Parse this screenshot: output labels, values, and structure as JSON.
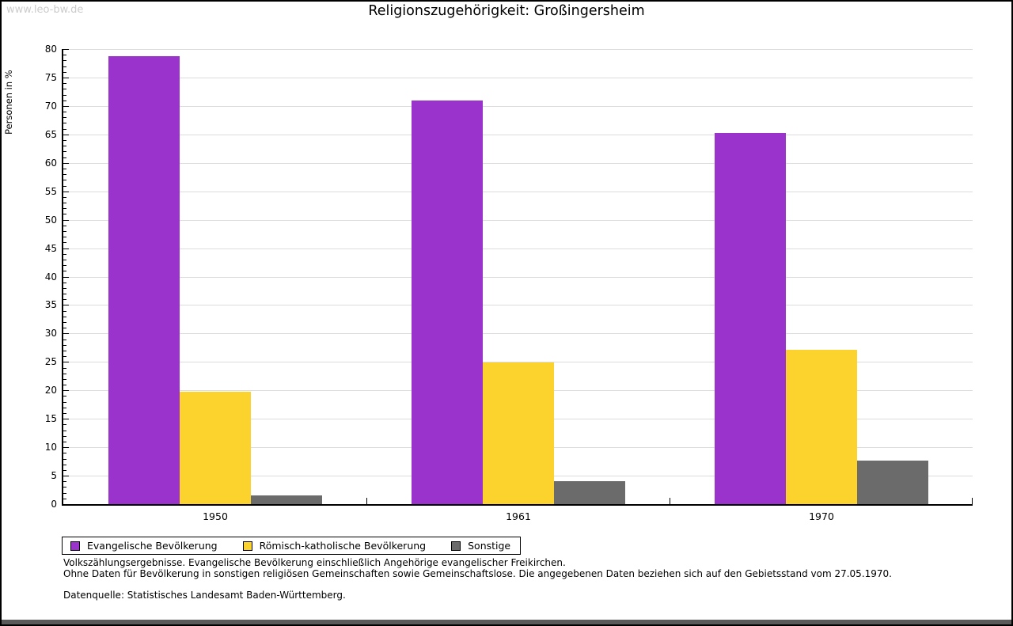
{
  "page": {
    "watermark": "www.leo-bw.de",
    "title": "Religionszugehörigkeit: Großingersheim"
  },
  "chart_data": {
    "type": "bar",
    "title": "Religionszugehörigkeit: Großingersheim",
    "ylabel": "Personen in %",
    "xlabel": "",
    "ylim": [
      0,
      80
    ],
    "ytick_step": 5,
    "yminor_step": 1,
    "grid": true,
    "legend_position": "bottom",
    "categories": [
      "1950",
      "1961",
      "1970"
    ],
    "series": [
      {
        "name": "Evangelische Bevölkerung",
        "color": "#9933cc",
        "values": [
          78.8,
          71.0,
          65.2
        ]
      },
      {
        "name": "Römisch-katholische Bevölkerung",
        "color": "#fcd32d",
        "values": [
          19.8,
          24.9,
          27.1
        ]
      },
      {
        "name": "Sonstige",
        "color": "#6b6b6b",
        "values": [
          1.5,
          4.1,
          7.7
        ]
      }
    ]
  },
  "footer": {
    "line1": "Volkszählungsergebnisse. Evangelische Bevölkerung einschließlich Angehörige evangelischer Freikirchen.",
    "line2": "Ohne Daten für Bevölkerung in sonstigen religiösen Gemeinschaften sowie Gemeinschaftslose. Die angegebenen Daten beziehen sich auf den Gebietsstand vom 27.05.1970.",
    "source": "Datenquelle: Statistisches Landesamt Baden-Württemberg."
  },
  "colors": {
    "gridline": "#dcdcdc",
    "axis": "#000000",
    "watermark": "#cccccc",
    "bottom_strip": "#5a5a5a"
  }
}
